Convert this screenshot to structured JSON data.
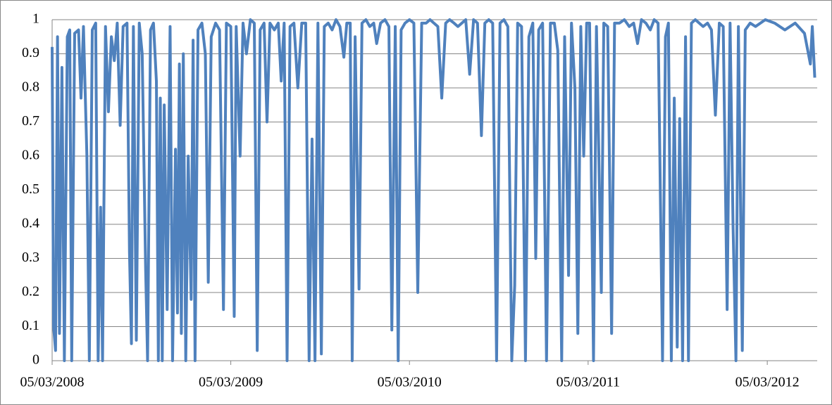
{
  "chart_data": {
    "type": "line",
    "x": [
      "2008-03-05",
      "2008-03-08",
      "2008-03-12",
      "2008-03-16",
      "2008-03-20",
      "2008-03-25",
      "2008-03-30",
      "2008-04-05",
      "2008-04-10",
      "2008-04-14",
      "2008-04-20",
      "2008-04-28",
      "2008-05-03",
      "2008-05-08",
      "2008-05-15",
      "2008-05-20",
      "2008-05-26",
      "2008-06-02",
      "2008-06-07",
      "2008-06-12",
      "2008-06-16",
      "2008-06-22",
      "2008-06-28",
      "2008-07-04",
      "2008-07-10",
      "2008-07-16",
      "2008-07-22",
      "2008-07-28",
      "2008-08-05",
      "2008-08-10",
      "2008-08-14",
      "2008-08-18",
      "2008-08-24",
      "2008-08-30",
      "2008-09-05",
      "2008-09-12",
      "2008-09-16",
      "2008-09-22",
      "2008-09-28",
      "2008-10-04",
      "2008-10-08",
      "2008-10-12",
      "2008-10-16",
      "2008-10-20",
      "2008-10-26",
      "2008-11-01",
      "2008-11-06",
      "2008-11-12",
      "2008-11-16",
      "2008-11-20",
      "2008-11-24",
      "2008-11-28",
      "2008-12-03",
      "2008-12-08",
      "2008-12-14",
      "2008-12-18",
      "2008-12-22",
      "2008-12-28",
      "2009-01-05",
      "2009-01-12",
      "2009-01-18",
      "2009-01-24",
      "2009-02-02",
      "2009-02-10",
      "2009-02-18",
      "2009-02-24",
      "2009-03-05",
      "2009-03-12",
      "2009-03-16",
      "2009-03-24",
      "2009-03-30",
      "2009-04-06",
      "2009-04-14",
      "2009-04-22",
      "2009-04-28",
      "2009-05-04",
      "2009-05-12",
      "2009-05-18",
      "2009-05-24",
      "2009-06-02",
      "2009-06-10",
      "2009-06-16",
      "2009-06-22",
      "2009-06-28",
      "2009-07-04",
      "2009-07-12",
      "2009-07-20",
      "2009-07-28",
      "2009-08-05",
      "2009-08-12",
      "2009-08-18",
      "2009-08-24",
      "2009-08-30",
      "2009-09-06",
      "2009-09-12",
      "2009-09-20",
      "2009-09-28",
      "2009-10-06",
      "2009-10-14",
      "2009-10-22",
      "2009-10-28",
      "2009-11-04",
      "2009-11-08",
      "2009-11-14",
      "2009-11-22",
      "2009-11-28",
      "2009-12-06",
      "2009-12-14",
      "2009-12-22",
      "2009-12-28",
      "2010-01-05",
      "2010-01-14",
      "2010-01-22",
      "2010-01-28",
      "2010-02-04",
      "2010-02-10",
      "2010-02-16",
      "2010-02-24",
      "2010-03-05",
      "2010-03-14",
      "2010-03-22",
      "2010-03-30",
      "2010-04-08",
      "2010-04-16",
      "2010-04-24",
      "2010-05-02",
      "2010-05-10",
      "2010-05-18",
      "2010-05-26",
      "2010-06-04",
      "2010-06-12",
      "2010-06-20",
      "2010-06-28",
      "2010-07-06",
      "2010-07-14",
      "2010-07-22",
      "2010-07-30",
      "2010-08-06",
      "2010-08-14",
      "2010-08-22",
      "2010-08-30",
      "2010-09-06",
      "2010-09-14",
      "2010-09-22",
      "2010-09-30",
      "2010-10-06",
      "2010-10-12",
      "2010-10-20",
      "2010-10-28",
      "2010-11-04",
      "2010-11-12",
      "2010-11-18",
      "2010-11-24",
      "2010-12-02",
      "2010-12-10",
      "2010-12-18",
      "2010-12-26",
      "2011-01-02",
      "2011-01-10",
      "2011-01-16",
      "2011-01-24",
      "2011-01-30",
      "2011-02-06",
      "2011-02-12",
      "2011-02-18",
      "2011-02-24",
      "2011-03-02",
      "2011-03-08",
      "2011-03-16",
      "2011-03-22",
      "2011-04-01",
      "2011-04-06",
      "2011-04-14",
      "2011-04-22",
      "2011-04-28",
      "2011-05-08",
      "2011-05-18",
      "2011-05-28",
      "2011-06-06",
      "2011-06-14",
      "2011-06-22",
      "2011-07-01",
      "2011-07-10",
      "2011-07-18",
      "2011-07-26",
      "2011-08-04",
      "2011-08-10",
      "2011-08-16",
      "2011-08-22",
      "2011-08-28",
      "2011-09-03",
      "2011-09-08",
      "2011-09-14",
      "2011-09-20",
      "2011-09-26",
      "2011-10-02",
      "2011-10-10",
      "2011-10-18",
      "2011-10-26",
      "2011-11-04",
      "2011-11-12",
      "2011-11-20",
      "2011-11-28",
      "2011-12-06",
      "2011-12-14",
      "2011-12-20",
      "2011-12-26",
      "2012-01-01",
      "2012-01-06",
      "2012-01-14",
      "2012-01-20",
      "2012-01-30",
      "2012-02-10",
      "2012-02-20",
      "2012-03-01",
      "2012-03-20",
      "2012-04-10",
      "2012-05-01",
      "2012-05-20",
      "2012-06-01",
      "2012-06-05",
      "2012-06-10"
    ],
    "series": [
      {
        "color": "#4f81bd",
        "values": [
          0.92,
          0.1,
          0.03,
          0.95,
          0.08,
          0.86,
          0.0,
          0.95,
          0.97,
          0.0,
          0.96,
          0.97,
          0.77,
          0.98,
          0.6,
          0.0,
          0.97,
          0.99,
          0.0,
          0.45,
          0.0,
          0.98,
          0.73,
          0.95,
          0.88,
          0.99,
          0.69,
          0.98,
          0.99,
          0.32,
          0.05,
          0.98,
          0.06,
          0.99,
          0.9,
          0.27,
          0.0,
          0.97,
          0.99,
          0.82,
          0.0,
          0.77,
          0.0,
          0.75,
          0.15,
          0.98,
          0.0,
          0.62,
          0.14,
          0.87,
          0.08,
          0.9,
          0.0,
          0.6,
          0.18,
          0.94,
          0.0,
          0.97,
          0.99,
          0.9,
          0.23,
          0.95,
          0.99,
          0.97,
          0.15,
          0.99,
          0.98,
          0.13,
          0.98,
          0.6,
          0.99,
          0.9,
          1.0,
          0.99,
          0.03,
          0.97,
          0.99,
          0.7,
          0.99,
          0.97,
          0.99,
          0.82,
          0.99,
          0.0,
          0.98,
          0.99,
          0.8,
          0.99,
          0.99,
          0.0,
          0.65,
          0.0,
          0.99,
          0.02,
          0.98,
          0.99,
          0.97,
          1.0,
          0.98,
          0.89,
          0.99,
          0.99,
          0.0,
          0.95,
          0.21,
          0.99,
          1.0,
          0.98,
          0.99,
          0.93,
          0.99,
          1.0,
          0.98,
          0.09,
          0.98,
          0.0,
          0.97,
          0.99,
          1.0,
          0.99,
          0.2,
          0.99,
          0.99,
          1.0,
          0.99,
          0.98,
          0.77,
          0.99,
          1.0,
          0.99,
          0.98,
          0.99,
          1.0,
          0.84,
          1.0,
          0.99,
          0.66,
          0.99,
          1.0,
          0.99,
          0.0,
          0.99,
          1.0,
          0.98,
          0.0,
          0.22,
          0.99,
          0.98,
          0.0,
          0.95,
          0.99,
          0.3,
          0.97,
          0.99,
          0.0,
          0.99,
          0.99,
          0.91,
          0.0,
          0.95,
          0.25,
          0.99,
          0.8,
          0.08,
          0.98,
          0.6,
          0.99,
          0.99,
          0.0,
          0.98,
          0.2,
          0.99,
          0.98,
          0.08,
          0.99,
          0.99,
          1.0,
          0.98,
          0.99,
          0.93,
          1.0,
          0.99,
          0.97,
          1.0,
          0.99,
          0.0,
          0.95,
          0.99,
          0.0,
          0.77,
          0.04,
          0.71,
          0.0,
          0.95,
          0.0,
          0.99,
          1.0,
          0.99,
          0.98,
          0.99,
          0.97,
          0.72,
          0.99,
          0.98,
          0.15,
          0.99,
          0.4,
          0.0,
          0.98,
          0.03,
          0.97,
          0.99,
          0.98,
          0.99,
          1.0,
          0.99,
          0.97,
          0.99,
          0.96,
          0.87,
          0.98,
          0.83
        ]
      }
    ],
    "xlim": [
      "2008-03-05",
      "2012-06-15"
    ],
    "xticks": [
      {
        "value": "2008-03-05",
        "label": "05/03/2008"
      },
      {
        "value": "2009-03-05",
        "label": "05/03/2009"
      },
      {
        "value": "2010-03-05",
        "label": "05/03/2010"
      },
      {
        "value": "2011-03-05",
        "label": "05/03/2011"
      },
      {
        "value": "2012-03-05",
        "label": "05/03/2012"
      }
    ],
    "ylim": [
      0,
      1
    ],
    "yticks": [
      0,
      0.1,
      0.2,
      0.3,
      0.4,
      0.5,
      0.6,
      0.7,
      0.8,
      0.9,
      1
    ],
    "grid": true
  }
}
